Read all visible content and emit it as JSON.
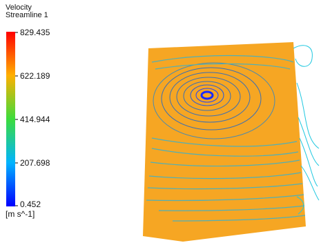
{
  "legend": {
    "title": "Velocity",
    "subtitle": "Streamline 1",
    "labels": [
      829.435,
      622.189,
      414.944,
      207.698,
      0.452
    ],
    "unit": "[m s^-1]"
  }
}
